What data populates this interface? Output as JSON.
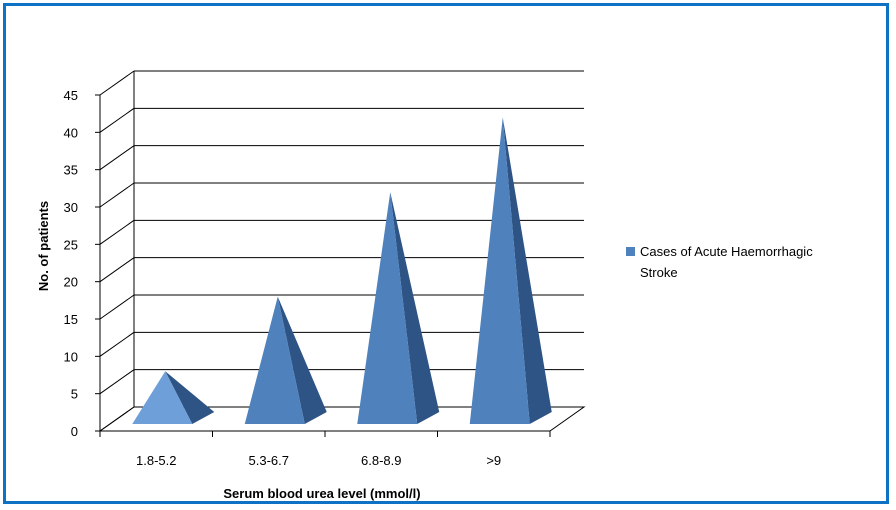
{
  "chart_data": {
    "type": "bar",
    "bar_shape": "pyramid-3d",
    "categories": [
      "1.8-5.2",
      "5.3-6.7",
      "6.8-8.9",
      ">9"
    ],
    "series": [
      {
        "name": "Cases of Acute Haemorrhagic Stroke",
        "values": [
          8,
          18,
          32,
          42
        ]
      }
    ],
    "title": "",
    "xlabel": "Serum blood urea level (mmol/l)",
    "ylabel": "No. of patients",
    "ylim": [
      0,
      45
    ],
    "yticks": [
      0,
      5,
      10,
      15,
      20,
      25,
      30,
      35,
      40,
      45
    ],
    "grid": true,
    "legend_position": "right",
    "legend_lines": [
      "Cases of Acute Haemorrhagic",
      "Stroke"
    ],
    "colors": {
      "series": "#4f81bd",
      "series_light": "#6f9fd8",
      "series_dark": "#2e5486",
      "frame_border": "#0e72c4",
      "grid": "#000000"
    }
  }
}
